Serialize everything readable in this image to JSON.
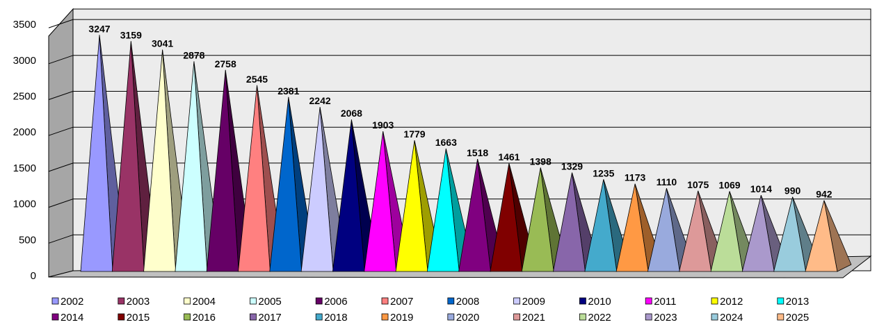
{
  "chart_data": {
    "type": "bar",
    "style": "3d-pyramid",
    "categories": [
      "2002",
      "2003",
      "2004",
      "2005",
      "2006",
      "2007",
      "2008",
      "2009",
      "2010",
      "2011",
      "2012",
      "2013",
      "2014",
      "2015",
      "2016",
      "2017",
      "2018",
      "2019",
      "2020",
      "2021",
      "2022",
      "2023",
      "2024",
      "2025"
    ],
    "values": [
      3247,
      3159,
      3041,
      2878,
      2758,
      2545,
      2381,
      2242,
      2068,
      1903,
      1779,
      1663,
      1518,
      1461,
      1398,
      1329,
      1235,
      1173,
      1110,
      1075,
      1069,
      1014,
      990,
      942
    ],
    "colors": [
      "#9999ff",
      "#993366",
      "#ffffcc",
      "#ccffff",
      "#660066",
      "#ff8080",
      "#0066cc",
      "#ccccff",
      "#000080",
      "#ff00ff",
      "#ffff00",
      "#00ffff",
      "#800080",
      "#800000",
      "#99bb55",
      "#8866aa",
      "#44aacc",
      "#ff9944",
      "#99aadd",
      "#dd9999",
      "#bbdd99",
      "#aa99cc",
      "#99ccdd",
      "#ffbb88"
    ],
    "yticks": [
      0,
      500,
      1000,
      1500,
      2000,
      2500,
      3000,
      3500
    ],
    "ylim": [
      0,
      3500
    ],
    "grid": true,
    "legend": "bottom",
    "title": "",
    "xlabel": "",
    "ylabel": ""
  }
}
